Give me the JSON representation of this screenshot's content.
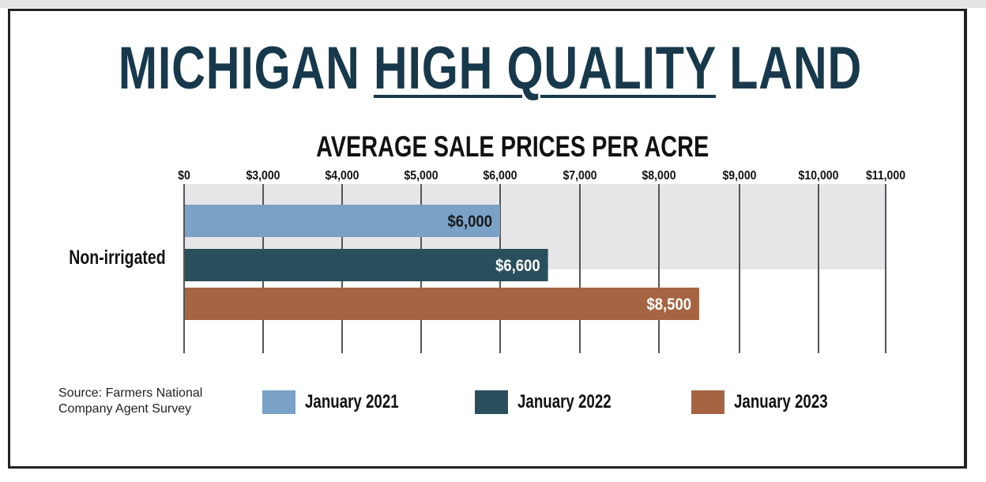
{
  "title_parts": {
    "before": "MICHIGAN ",
    "underlined": "HIGH QUALITY",
    "after": " LAND"
  },
  "source": {
    "line1": "Source: Farmers National",
    "line2": "Company Agent Survey"
  },
  "chart_data": {
    "type": "bar",
    "orientation": "horizontal",
    "title": "MICHIGAN HIGH QUALITY LAND",
    "subtitle": "AVERAGE SALE PRICES PER ACRE",
    "categories": [
      "Non-irrigated"
    ],
    "x_ticks": [
      0,
      3000,
      4000,
      5000,
      6000,
      7000,
      8000,
      9000,
      10000,
      11000
    ],
    "x_tick_labels": [
      "$0",
      "$3,000",
      "$4,000",
      "$5,000",
      "$6,000",
      "$7,000",
      "$8,000",
      "$9,000",
      "$10,000",
      "$11,000"
    ],
    "xlim": [
      0,
      11000
    ],
    "grid": true,
    "legend_placement": "bottom",
    "series": [
      {
        "name": "January 2021",
        "values": [
          6000
        ],
        "label": "$6,000",
        "color": "#7aa1c6",
        "label_color": "#1a1a1a"
      },
      {
        "name": "January 2022",
        "values": [
          6600
        ],
        "label": "$6,600",
        "color": "#2a4f5c",
        "label_color": "#ffffff"
      },
      {
        "name": "January 2023",
        "values": [
          8500
        ],
        "label": "$8,500",
        "color": "#a66542",
        "label_color": "#ffffff"
      }
    ]
  }
}
